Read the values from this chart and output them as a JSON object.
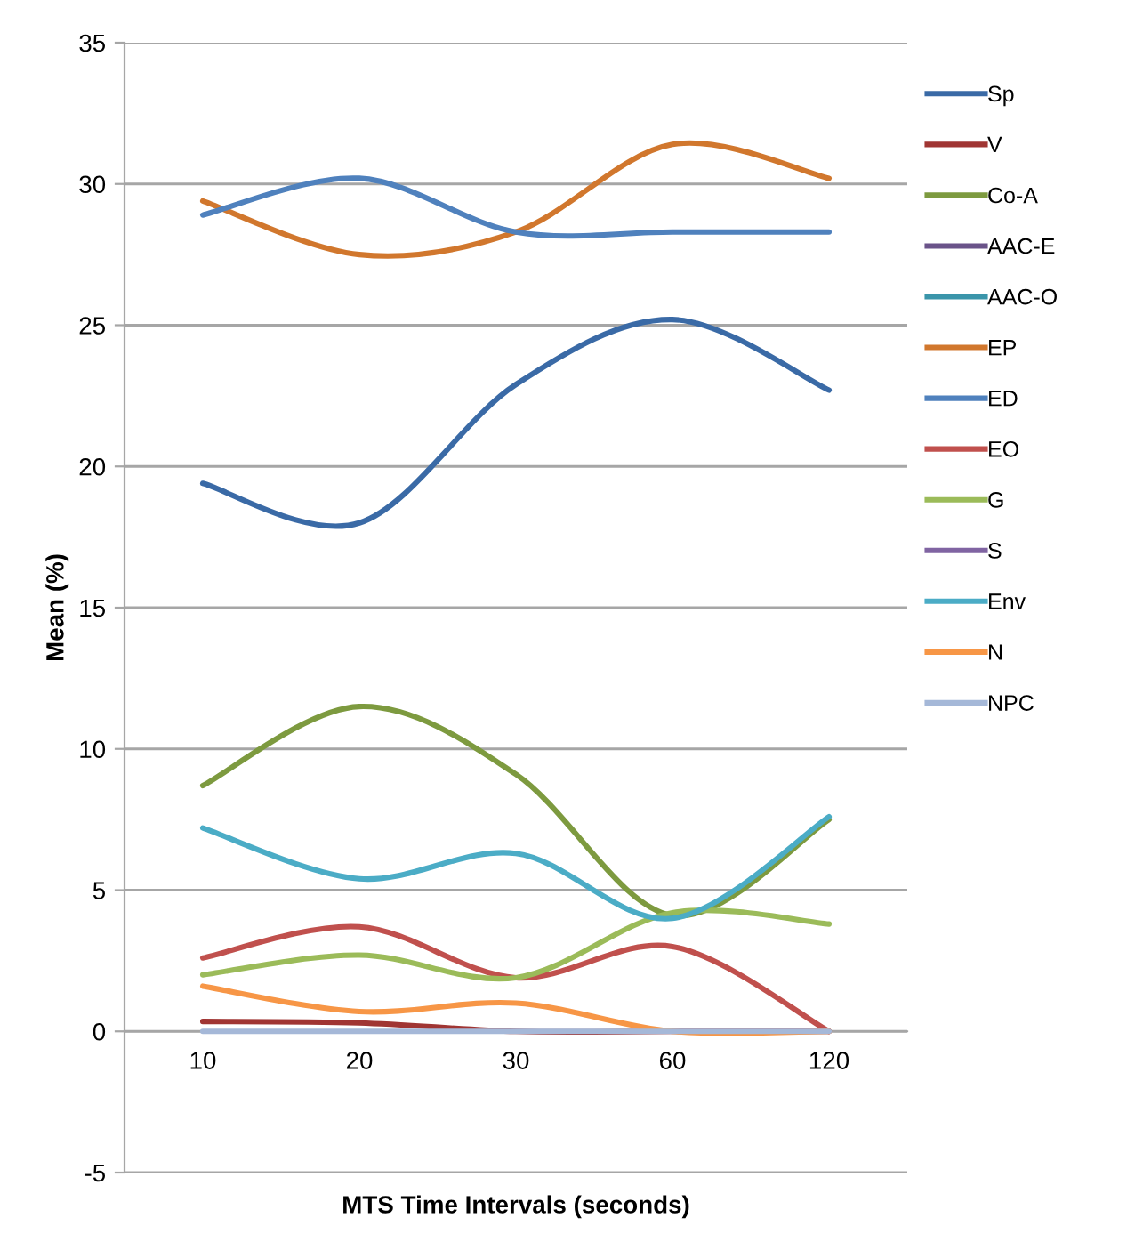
{
  "chart_data": {
    "type": "line",
    "xlabel": "MTS Time Intervals (seconds)",
    "ylabel": "Mean (%)",
    "categories": [
      "10",
      "20",
      "30",
      "60",
      "120"
    ],
    "ylim": [
      -5,
      35
    ],
    "yticks": [
      -5,
      0,
      5,
      10,
      15,
      20,
      25,
      30,
      35
    ],
    "grid": "y",
    "legend": "right",
    "marker": "none",
    "line_style": "solid",
    "series": [
      {
        "name": "Sp",
        "color": "#3a6aa6",
        "values": [
          19.4,
          18.0,
          22.9,
          25.2,
          22.7
        ]
      },
      {
        "name": "V",
        "color": "#a03533",
        "values": [
          0.35,
          0.3,
          0,
          0,
          0
        ]
      },
      {
        "name": "Co-A",
        "color": "#7d9a3f",
        "values": [
          8.7,
          11.5,
          9.1,
          4.1,
          7.5
        ]
      },
      {
        "name": "AAC-E",
        "color": "#6a5389",
        "values": [
          null,
          null,
          null,
          null,
          null
        ]
      },
      {
        "name": "AAC-O",
        "color": "#3a95aa",
        "values": [
          null,
          null,
          null,
          null,
          null
        ]
      },
      {
        "name": "EP",
        "color": "#d1772d",
        "values": [
          29.4,
          27.5,
          28.3,
          31.4,
          30.2
        ]
      },
      {
        "name": "ED",
        "color": "#4f81bd",
        "values": [
          28.9,
          30.2,
          28.3,
          28.3,
          28.3
        ]
      },
      {
        "name": "EO",
        "color": "#c0504d",
        "values": [
          2.6,
          3.7,
          1.9,
          3.0,
          0
        ]
      },
      {
        "name": "G",
        "color": "#9bbb59",
        "values": [
          2.0,
          2.7,
          1.9,
          4.2,
          3.8
        ]
      },
      {
        "name": "S",
        "color": "#8064a2",
        "values": [
          null,
          null,
          null,
          null,
          null
        ]
      },
      {
        "name": "Env",
        "color": "#4bacc6",
        "values": [
          7.2,
          5.4,
          6.3,
          4.0,
          7.6
        ]
      },
      {
        "name": "N",
        "color": "#f79646",
        "values": [
          1.6,
          0.7,
          1.0,
          0,
          0
        ]
      },
      {
        "name": "NPC",
        "color": "#a5b8d8",
        "values": [
          0,
          0,
          0,
          0,
          0
        ]
      }
    ]
  }
}
